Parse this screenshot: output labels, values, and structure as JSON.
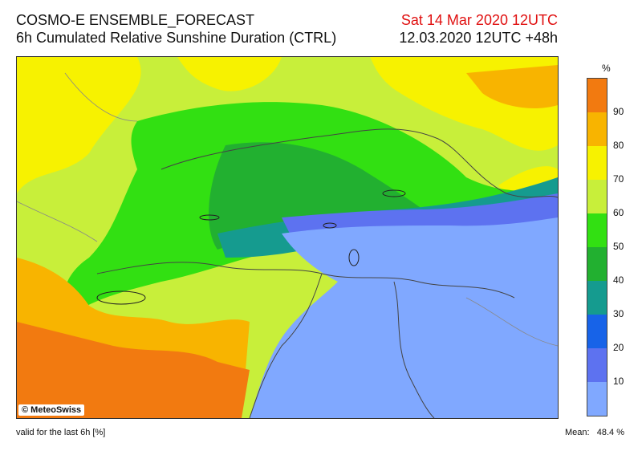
{
  "header": {
    "title_line1": "COSMO-E ENSEMBLE_FORECAST",
    "title_line2": "6h Cumulated Relative Sunshine Duration (CTRL)",
    "valid_date": "Sat 14 Mar 2020 12UTC",
    "run_info": "12.03.2020 12UTC +48h"
  },
  "map": {
    "copyright": "© MeteoSwiss"
  },
  "footer": {
    "validity": "valid for the last 6h [%]",
    "mean_label": "Mean:",
    "mean_value": "48.4 %"
  },
  "legend": {
    "unit": "%",
    "colors": [
      "#f27a10",
      "#f8b400",
      "#f7f200",
      "#c8ef3a",
      "#32e012",
      "#22b030",
      "#159b8f",
      "#1763e8",
      "#5d72f0",
      "#80a8ff"
    ],
    "labels": [
      "90",
      "80",
      "70",
      "60",
      "50",
      "40",
      "30",
      "20",
      "10"
    ]
  }
}
